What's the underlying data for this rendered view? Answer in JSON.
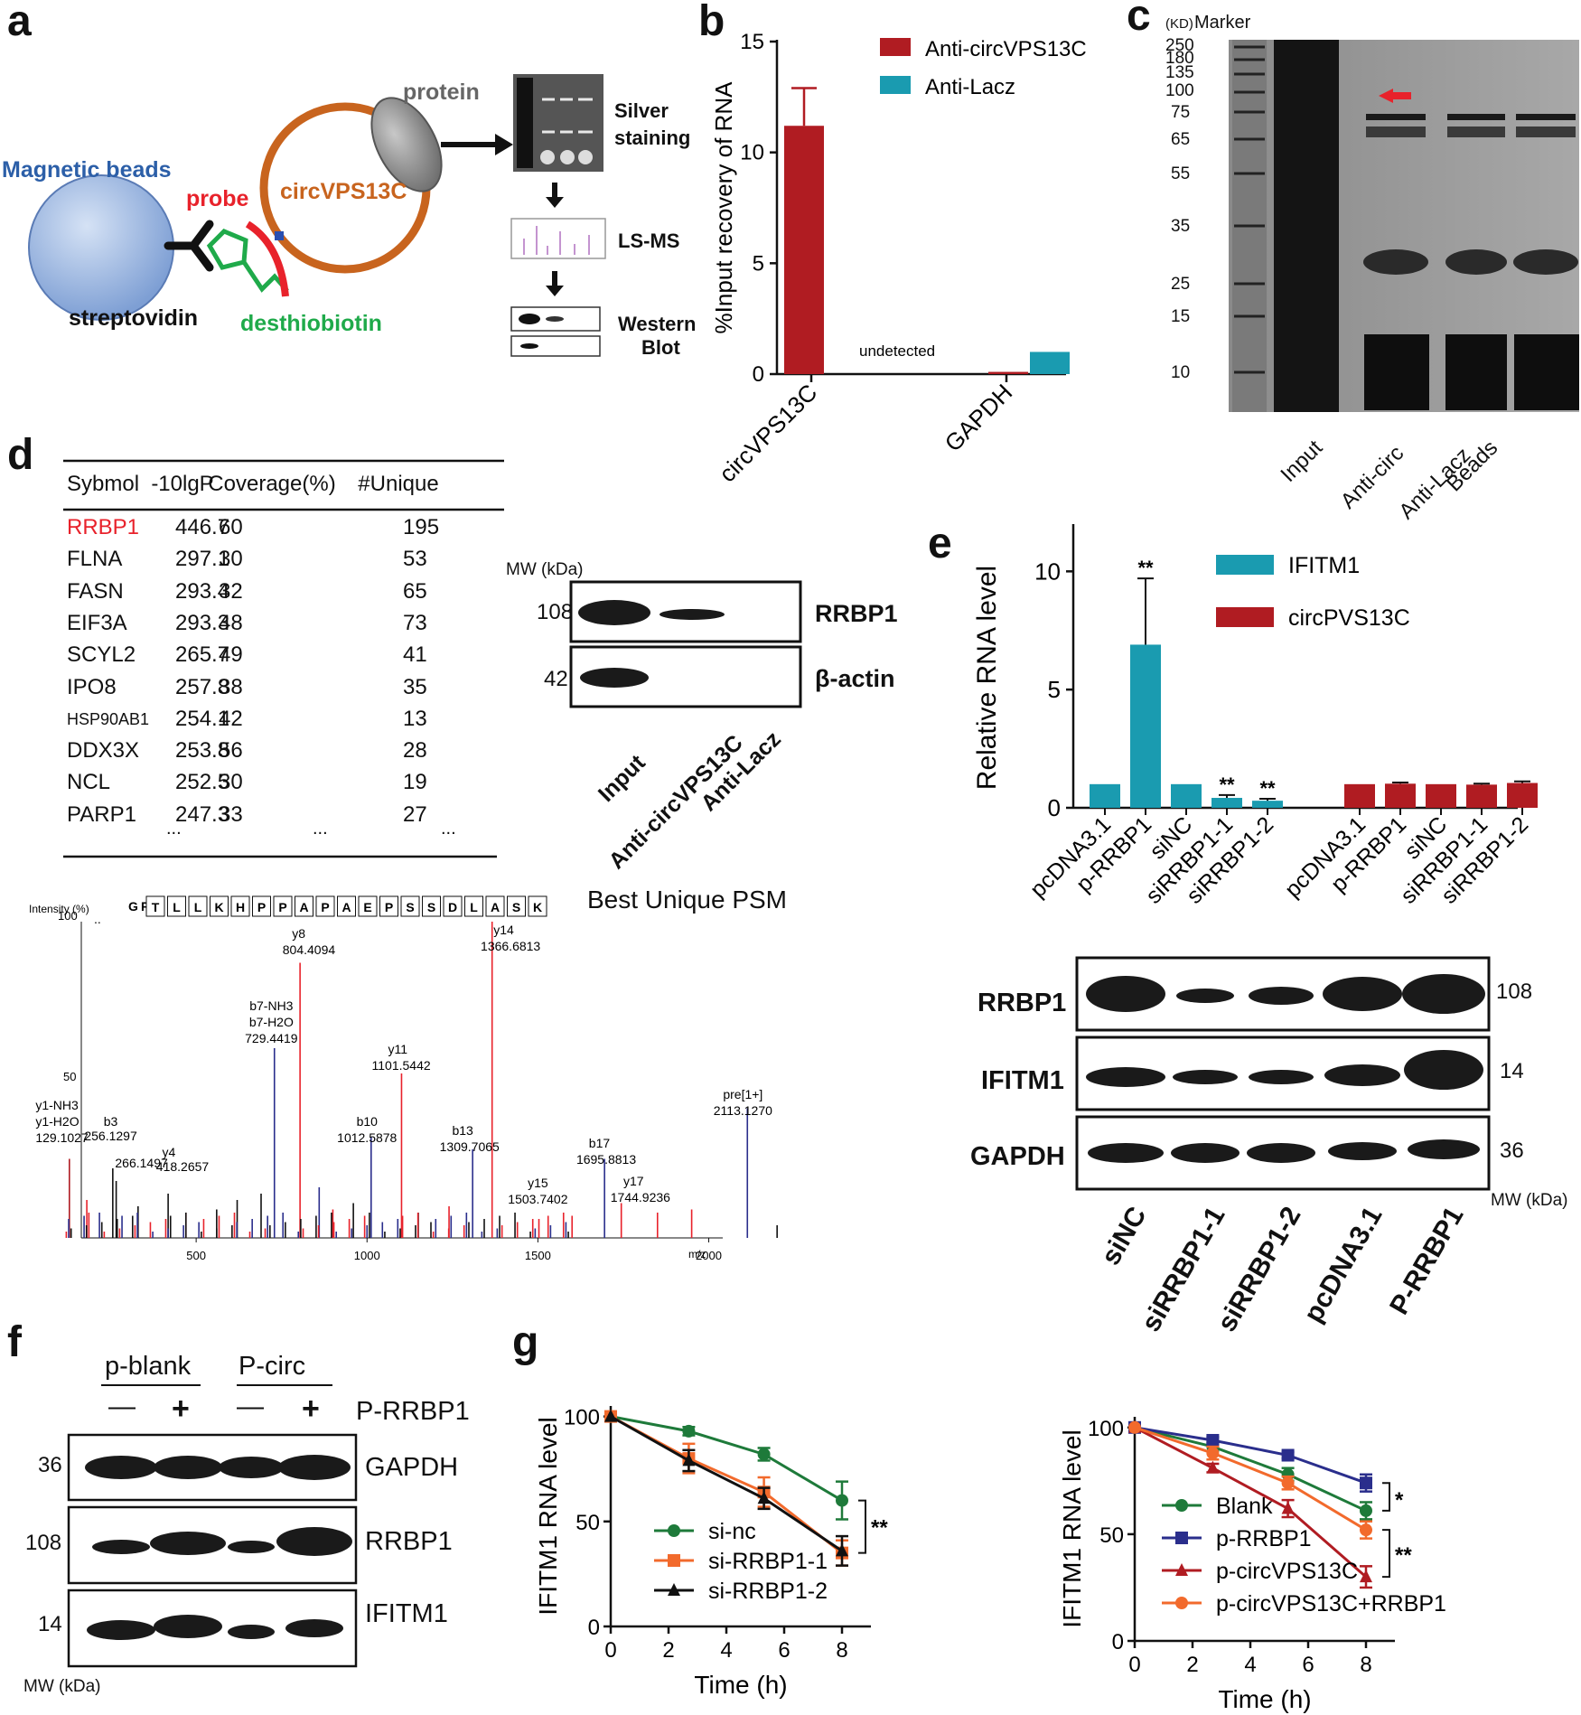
{
  "panels": {
    "a": {
      "label": "a",
      "magnetic_beads": "Magnetic beads",
      "probe": "probe",
      "circ": "circVPS13C",
      "protein": "protein",
      "streptovidin": "streptovidin",
      "desthiobiotin": "desthiobiotin",
      "silver": "Silver",
      "staining": "staining",
      "lsms": "LS-MS",
      "western": "Western",
      "blot": "Blot"
    },
    "b": {
      "label": "b",
      "undetected": "undetected"
    },
    "c": {
      "label": "c",
      "kd": "(KD)",
      "marker": "Marker",
      "mw_ticks": [
        "250",
        "180",
        "135",
        "100",
        "75",
        "65",
        "55",
        "35",
        "25",
        "15",
        "10"
      ],
      "lanes": [
        "Input",
        "Anti-circ",
        "Anti-Lacz",
        "Beads"
      ]
    },
    "d": {
      "label": "d",
      "table_headers": [
        "Sybmol",
        "-10lgP",
        "Coverage(%)",
        "#Unique"
      ],
      "table_rows": [
        [
          "RRBP1",
          "446.7",
          "60",
          "195"
        ],
        [
          "FLNA",
          "297.1",
          "30",
          "53"
        ],
        [
          "FASN",
          "293.4",
          "32",
          "65"
        ],
        [
          "EIF3A",
          "293.3",
          "48",
          "73"
        ],
        [
          "SCYL2",
          "265.7",
          "49",
          "41"
        ],
        [
          "IPO8",
          "257.8",
          "38",
          "35"
        ],
        [
          "HSP90AB1",
          "254.1",
          "42",
          "13"
        ],
        [
          "DDX3X",
          "253.8",
          "56",
          "28"
        ],
        [
          "NCL",
          "252.5",
          "30",
          "19"
        ],
        [
          "PARP1",
          "247.3",
          "33",
          "27"
        ]
      ],
      "ellipsis": "...",
      "highlight_color": "#e8222b",
      "wb": {
        "mw_title": "MW (kDa)",
        "rows": [
          {
            "mw": "108",
            "name": "RRBP1"
          },
          {
            "mw": "42",
            "name": "β-actin"
          }
        ],
        "lanes": [
          "Input",
          "Anti-circVPS13C",
          "Anti-Lacz"
        ]
      },
      "psm": {
        "title": "Best Unique PSM",
        "intensity_label": "Intensity (%)",
        "sequence": [
          "G",
          "P",
          "T",
          "L",
          "L",
          "K",
          "H",
          "P",
          "P",
          "A",
          "P",
          "A",
          "E",
          "P",
          "S",
          "S",
          "D",
          "L",
          "A",
          "S",
          "K"
        ],
        "y_ticks": [
          "100",
          "50"
        ],
        "x_ticks": [
          "500",
          "1000",
          "1500",
          "2000"
        ],
        "x_unit": "m/z",
        "annotations": {
          "y1a": "y1-NH3",
          "y1b": "y1-H2O",
          "y1v": "129.1027",
          "b3": "b3",
          "b3v": "256.1297",
          "b3v2": "266.1497",
          "y4": "y4",
          "y4v": "418.2657",
          "b7a": "b7-NH3",
          "b7b": "b7-H2O",
          "b7v": "729.4419",
          "y8": "y8",
          "y8v": "804.4094",
          "b10": "b10",
          "b10v": "1012.5878",
          "y11": "y11",
          "y11v": "1101.5442",
          "b13": "b13",
          "b13v": "1309.7065",
          "y14": "y14",
          "y14v": "1366.6813",
          "y15": "y15",
          "y15v": "1503.7402",
          "b17": "b17",
          "b17v": "1695.8813",
          "y17": "y17",
          "y17v": "1744.9236",
          "pre": "pre[1+]",
          "prev": "2113.1270"
        }
      }
    },
    "e": {
      "label": "e",
      "wb": {
        "rows": [
          {
            "name": "RRBP1",
            "mw": "108"
          },
          {
            "name": "IFITM1",
            "mw": "14"
          },
          {
            "name": "GAPDH",
            "mw": "36"
          }
        ],
        "mw_title": "MW (kDa)",
        "lanes": [
          "siNC",
          "siRRBP1-1",
          "siRRBP1-2",
          "pcDNA3.1",
          "P-RRBP1"
        ]
      }
    },
    "f": {
      "label": "f",
      "groups": [
        "p-blank",
        "P-circ"
      ],
      "signs": [
        "—",
        "+",
        "—",
        "+"
      ],
      "treatment": "P-RRBP1",
      "rows": [
        {
          "mw": "36",
          "name": "GAPDH"
        },
        {
          "mw": "108",
          "name": "RRBP1"
        },
        {
          "mw": "14",
          "name": "IFITM1"
        }
      ],
      "mw_title": "MW (kDa)"
    },
    "g": {
      "label": "g"
    }
  },
  "colors": {
    "dark_red": "#b01c22",
    "teal": "#1a9bb0",
    "green": "#1e7a3a",
    "orange": "#f26a2c",
    "navy": "#2a2e8c",
    "black": "#111111"
  },
  "chart_data": [
    {
      "id": "b",
      "type": "bar",
      "categories": [
        "circVPS13C",
        "GAPDH"
      ],
      "series": [
        {
          "name": "Anti-circVPS13C",
          "values": [
            11.2,
            0.1
          ],
          "errors": [
            1.7,
            0
          ]
        },
        {
          "name": "Anti-Lacz",
          "values": [
            0,
            1.0
          ],
          "errors": [
            0,
            0
          ]
        }
      ],
      "ylabel": "%Input recovery of RNA",
      "ylim": [
        0,
        15
      ],
      "yticks": [
        "0",
        "5",
        "10",
        "15"
      ],
      "annotations": [
        "undetected"
      ]
    },
    {
      "id": "e",
      "type": "bar",
      "categories": [
        "pcDNA3.1",
        "p-RRBP1",
        "siNC",
        "siRRBP1-1",
        "siRRBP1-2"
      ],
      "series": [
        {
          "name": "IFITM1",
          "values": [
            1,
            6.9,
            1,
            0.42,
            0.3
          ],
          "errors": [
            0,
            2.8,
            0,
            0.12,
            0.08
          ],
          "sig": [
            "",
            "**",
            "",
            "**",
            "**"
          ]
        },
        {
          "name": "circPVS13C",
          "values": [
            1,
            1.02,
            1,
            0.98,
            1.05
          ],
          "errors": [
            0,
            0.05,
            0,
            0.04,
            0.07
          ]
        }
      ],
      "ylabel": "Relative RNA level",
      "ylim": [
        0,
        12
      ],
      "yticks": [
        "0",
        "5",
        "10"
      ]
    },
    {
      "id": "g-left",
      "type": "line",
      "x": [
        0,
        2.7,
        5.3,
        8
      ],
      "series": [
        {
          "name": "si-nc",
          "values": [
            100,
            93,
            82,
            60
          ],
          "errors": [
            0,
            2,
            3,
            9
          ]
        },
        {
          "name": "si-RRBP1-1",
          "values": [
            100,
            80,
            64,
            35
          ],
          "errors": [
            0,
            7,
            7,
            6
          ]
        },
        {
          "name": "si-RRBP1-2",
          "values": [
            100,
            79,
            61,
            36
          ],
          "errors": [
            0,
            5,
            5,
            7
          ]
        }
      ],
      "xlabel": "Time (h)",
      "ylabel": "IFITM1 RNA level",
      "xlim": [
        0,
        9
      ],
      "ylim": [
        0,
        105
      ],
      "xticks": [
        "0",
        "2",
        "4",
        "6",
        "8"
      ],
      "yticks": [
        "0",
        "50",
        "100"
      ],
      "significance": [
        "**"
      ]
    },
    {
      "id": "g-right",
      "type": "line",
      "x": [
        0,
        2.7,
        5.3,
        8
      ],
      "series": [
        {
          "name": "Blank",
          "values": [
            100,
            91,
            78,
            61
          ],
          "errors": [
            0,
            2,
            3,
            4
          ]
        },
        {
          "name": "p-RRBP1",
          "values": [
            100,
            94,
            87,
            74
          ],
          "errors": [
            0,
            1.5,
            1.5,
            4
          ]
        },
        {
          "name": "p-circVPS13C",
          "values": [
            100,
            81,
            62,
            30
          ],
          "errors": [
            0,
            2,
            4,
            5
          ]
        },
        {
          "name": "p-circVPS13C+RRBP1",
          "values": [
            100,
            88,
            74,
            52
          ],
          "errors": [
            0,
            3,
            3,
            4
          ]
        }
      ],
      "xlabel": "Time (h)",
      "ylabel": "IFITM1 RNA level",
      "xlim": [
        0,
        9
      ],
      "ylim": [
        0,
        105
      ],
      "xticks": [
        "0",
        "2",
        "4",
        "6",
        "8"
      ],
      "yticks": [
        "0",
        "50",
        "100"
      ],
      "significance": [
        "*",
        "**"
      ]
    }
  ]
}
